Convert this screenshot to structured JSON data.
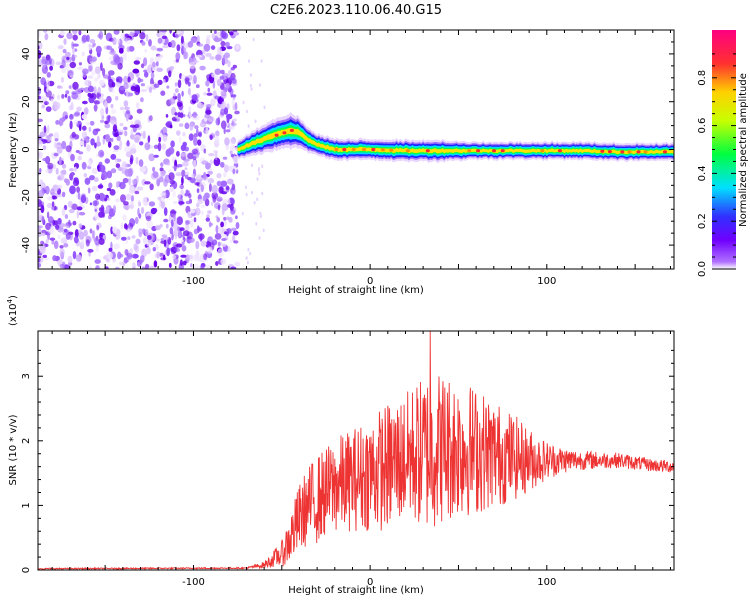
{
  "title": "C2E6.2023.110.06.40.G15",
  "colors": {
    "snr_line": "#ee3333",
    "axis": "#000000",
    "low_amp_purple": "#7a1ef0"
  },
  "chart_data": [
    {
      "type": "heatmap",
      "xlabel": "Height of straight line (km)",
      "ylabel": "Frequency (Hz)",
      "xlim": [
        -188,
        172
      ],
      "ylim": [
        -50,
        50
      ],
      "x_ticks": [
        {
          "value": -100,
          "label": "-100"
        },
        {
          "value": 0,
          "label": "0"
        },
        {
          "value": 100,
          "label": "100"
        }
      ],
      "y_ticks": [
        {
          "value": -40,
          "label": "-40"
        },
        {
          "value": -20,
          "label": "-20"
        },
        {
          "value": 0,
          "label": "0"
        },
        {
          "value": 20,
          "label": "20"
        },
        {
          "value": 40,
          "label": "40"
        }
      ],
      "colorbar": {
        "label": "Normalized spectral amplitude",
        "range": [
          0,
          1
        ],
        "ticks": [
          {
            "value": 0.0,
            "label": "0.0"
          },
          {
            "value": 0.2,
            "label": "0.2"
          },
          {
            "value": 0.4,
            "label": "0.4"
          },
          {
            "value": 0.6,
            "label": "0.6"
          },
          {
            "value": 0.8,
            "label": "0.8"
          }
        ],
        "colorscale": [
          "#ffffff",
          "#b070ff",
          "#7000ff",
          "#3030ff",
          "#00e0ff",
          "#00ff40",
          "#c8ff00",
          "#ffd000",
          "#ff3030",
          "#ff0080"
        ]
      },
      "noise_region_x": [
        -188,
        -75
      ],
      "ridge": {
        "x": [
          -75,
          -70,
          -65,
          -60,
          -55,
          -50,
          -45,
          -40,
          -35,
          -30,
          -25,
          -20,
          -10,
          0,
          20,
          40,
          60,
          80,
          100,
          120,
          140,
          160,
          172
        ],
        "center_freq": [
          0,
          1.5,
          3,
          4.5,
          6,
          7,
          8,
          7,
          4,
          2,
          1,
          0,
          0,
          0,
          -0.5,
          -0.5,
          -0.5,
          -0.5,
          -0.5,
          -0.5,
          -1,
          -1,
          -1
        ],
        "half_width": [
          2.5,
          3,
          3.5,
          4,
          4.5,
          4.5,
          5,
          4.5,
          3.5,
          3,
          3,
          3,
          3,
          3,
          3,
          3,
          2.5,
          2.5,
          2.5,
          2.5,
          2.5,
          2.5,
          2.5
        ]
      }
    },
    {
      "type": "line",
      "xlabel": "Height of straight line (km)",
      "ylabel": "SNR (10 * v/v)",
      "y_multiplier": "(x10",
      "y_multiplier_exp": "4",
      "y_multiplier_close": ")",
      "xlim": [
        -188,
        172
      ],
      "ylim": [
        0,
        3.7
      ],
      "x_ticks": [
        {
          "value": -100,
          "label": "-100"
        },
        {
          "value": 0,
          "label": "0"
        },
        {
          "value": 100,
          "label": "100"
        }
      ],
      "y_ticks": [
        {
          "value": 0,
          "label": "0"
        },
        {
          "value": 1,
          "label": "1"
        },
        {
          "value": 2,
          "label": "2"
        },
        {
          "value": 3,
          "label": "3"
        }
      ],
      "series": [
        {
          "envelope": {
            "x": [
              -188,
              -70,
              -60,
              -50,
              -45,
              -40,
              -35,
              -30,
              -25,
              -20,
              -10,
              0,
              10,
              20,
              25,
              30,
              35,
              40,
              50,
              60,
              70,
              80,
              90,
              100,
              110,
              120,
              140,
              160,
              172
            ],
            "mean": [
              0.02,
              0.03,
              0.08,
              0.25,
              0.5,
              0.8,
              1.0,
              1.1,
              1.2,
              1.3,
              1.4,
              1.5,
              1.6,
              1.75,
              1.8,
              1.8,
              1.9,
              1.9,
              1.9,
              1.85,
              1.8,
              1.75,
              1.7,
              1.7,
              1.7,
              1.7,
              1.7,
              1.62,
              1.6
            ],
            "spread": [
              0.01,
              0.01,
              0.05,
              0.2,
              0.4,
              0.55,
              0.6,
              0.7,
              0.7,
              0.75,
              0.8,
              0.9,
              1.0,
              1.0,
              1.1,
              1.2,
              1.3,
              1.2,
              1.1,
              1.0,
              0.85,
              0.7,
              0.5,
              0.3,
              0.2,
              0.15,
              0.12,
              0.1,
              0.1
            ]
          },
          "peak_max": 3.7,
          "peak_x": 34
        }
      ]
    }
  ]
}
